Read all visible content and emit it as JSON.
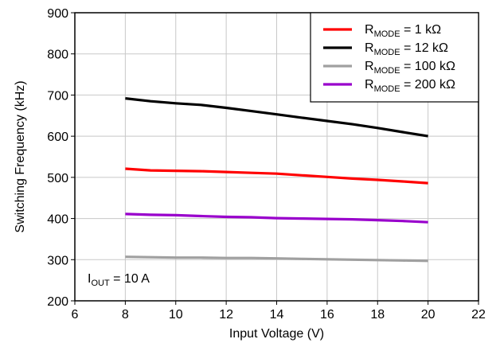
{
  "chart_data": {
    "type": "line",
    "title": "",
    "xlabel": "Input Voltage (V)",
    "ylabel": "Switching Frequency (kHz)",
    "xlim": [
      6,
      22
    ],
    "ylim": [
      200,
      900
    ],
    "xticks": [
      6,
      8,
      10,
      12,
      14,
      16,
      18,
      20,
      22
    ],
    "yticks": [
      200,
      300,
      400,
      500,
      600,
      700,
      800,
      900
    ],
    "grid": true,
    "legend_position": "top-right",
    "annotation": {
      "main": "I",
      "sub": "OUT",
      "rest": " = 10 A"
    },
    "x": [
      8,
      9,
      10,
      11,
      12,
      13,
      14,
      15,
      16,
      17,
      18,
      19,
      20
    ],
    "series": [
      {
        "name_main": "R",
        "name_sub": "MODE",
        "name_rest": " = 1 kΩ",
        "color": "#ff0000",
        "values": [
          521,
          517,
          516,
          515,
          513,
          511,
          509,
          505,
          501,
          497,
          494,
          490,
          486
        ]
      },
      {
        "name_main": "R",
        "name_sub": "MODE",
        "name_rest": " = 12 kΩ",
        "color": "#000000",
        "values": [
          692,
          685,
          680,
          676,
          669,
          661,
          653,
          645,
          637,
          629,
          620,
          610,
          600
        ]
      },
      {
        "name_main": "R",
        "name_sub": "MODE",
        "name_rest": " = 100 kΩ",
        "color": "#a0a0a0",
        "values": [
          307,
          306,
          305,
          305,
          304,
          304,
          303,
          302,
          301,
          300,
          299,
          298,
          297
        ]
      },
      {
        "name_main": "R",
        "name_sub": "MODE",
        "name_rest": " = 200 kΩ",
        "color": "#9900cc",
        "values": [
          411,
          409,
          408,
          406,
          404,
          403,
          401,
          400,
          399,
          398,
          396,
          394,
          391
        ]
      }
    ]
  }
}
